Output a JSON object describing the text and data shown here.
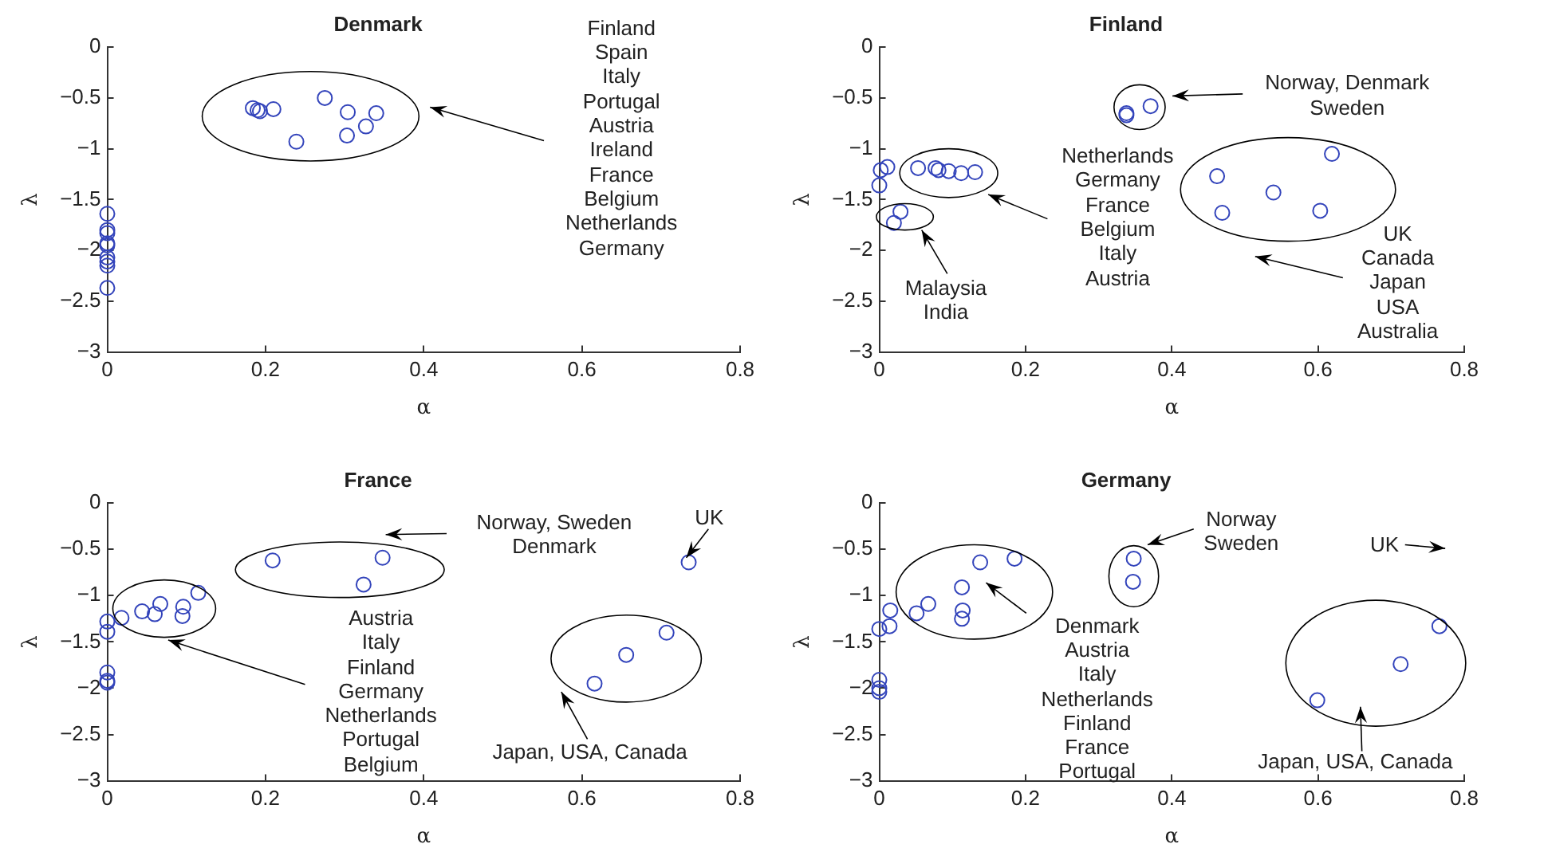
{
  "chart_data": [
    {
      "type": "scatter",
      "title": "Denmark",
      "xlabel": "α",
      "ylabel": "λ",
      "color": "#3344bb",
      "marker": "circle",
      "grid": false,
      "legend": false,
      "xlim": [
        0,
        0.8
      ],
      "xticks": [
        0,
        0.2,
        0.4,
        0.6,
        0.8
      ],
      "ylim": [
        -3,
        0
      ],
      "yticks": [
        -3,
        -2.5,
        -2,
        -1.5,
        -1,
        -0.5,
        0
      ],
      "x": [
        0.184,
        0.19,
        0.193,
        0.21,
        0.275,
        0.304,
        0.34,
        0.327,
        0.303,
        0.239,
        0,
        0,
        0,
        0,
        0,
        0,
        0,
        0,
        0
      ],
      "values": [
        -0.6,
        -0.62,
        -0.63,
        -0.61,
        -0.5,
        -0.64,
        -0.65,
        -0.78,
        -0.87,
        -0.93,
        -1.64,
        -1.8,
        -1.83,
        -1.93,
        -1.95,
        -2.07,
        -2.11,
        -2.15,
        -2.37
      ],
      "annotations": [
        "Finland\nSpain\nItaly\nPortugal\nAustria\nIreland\nFrance\nBelgium\nNetherlands\nGermany"
      ]
    },
    {
      "type": "scatter",
      "title": "Finland",
      "xlabel": "α",
      "ylabel": "λ",
      "color": "#3344bb",
      "marker": "circle",
      "grid": false,
      "legend": false,
      "xlim": [
        0,
        0.8
      ],
      "xticks": [
        0,
        0.2,
        0.4,
        0.6,
        0.8
      ],
      "ylim": [
        -3,
        0
      ],
      "yticks": [
        -3,
        -2.5,
        -2,
        -1.5,
        -1,
        -0.5,
        0
      ],
      "x": [
        0.002,
        0.011,
        0,
        0.029,
        0.02,
        0.053,
        0.077,
        0.081,
        0.095,
        0.112,
        0.131,
        0.338,
        0.338,
        0.371,
        0.462,
        0.469,
        0.539,
        0.603,
        0.619
      ],
      "values": [
        -1.21,
        -1.18,
        -1.36,
        -1.62,
        -1.73,
        -1.19,
        -1.19,
        -1.21,
        -1.22,
        -1.24,
        -1.23,
        -0.65,
        -0.67,
        -0.58,
        -1.27,
        -1.63,
        -1.43,
        -1.61,
        -1.05
      ],
      "annotations": [
        "Norway, Denmark\nSweden",
        "Netherlands\nGermany\nFrance\nBelgium\nItaly\nAustria",
        "Malaysia\nIndia",
        "UK\nCanada\nJapan\nUSA\nAustralia"
      ]
    },
    {
      "type": "scatter",
      "title": "France",
      "xlabel": "α",
      "ylabel": "λ",
      "color": "#3344bb",
      "marker": "circle",
      "grid": false,
      "legend": false,
      "xlim": [
        0,
        0.8
      ],
      "xticks": [
        0,
        0.2,
        0.4,
        0.6,
        0.8
      ],
      "ylim": [
        -3,
        0
      ],
      "yticks": [
        -3,
        -2.5,
        -2,
        -1.5,
        -1,
        -0.5,
        0
      ],
      "x": [
        0,
        0,
        0,
        0,
        0,
        0.018,
        0.044,
        0.06,
        0.067,
        0.096,
        0.095,
        0.115,
        0.209,
        0.348,
        0.324,
        0.735,
        0.616,
        0.656,
        0.707
      ],
      "values": [
        -1.28,
        -1.39,
        -1.83,
        -1.92,
        -1.94,
        -1.24,
        -1.17,
        -1.2,
        -1.09,
        -1.12,
        -1.22,
        -0.97,
        -0.62,
        -0.59,
        -0.88,
        -0.64,
        -1.95,
        -1.64,
        -1.4
      ],
      "annotations": [
        "Norway, Sweden\nDenmark",
        "UK",
        "Austria\nItaly\nFinland\nGermany\nNetherlands\nPortugal\nBelgium",
        "Japan, USA, Canada"
      ]
    },
    {
      "type": "scatter",
      "title": "Germany",
      "xlabel": "α",
      "ylabel": "λ",
      "color": "#3344bb",
      "marker": "circle",
      "grid": false,
      "legend": false,
      "xlim": [
        0,
        0.8
      ],
      "xticks": [
        0,
        0.2,
        0.4,
        0.6,
        0.8
      ],
      "ylim": [
        -3,
        0
      ],
      "yticks": [
        -3,
        -2.5,
        -2,
        -1.5,
        -1,
        -0.5,
        0
      ],
      "x": [
        0,
        0.014,
        0.015,
        0,
        0,
        0,
        0.051,
        0.067,
        0.113,
        0.114,
        0.113,
        0.138,
        0.185,
        0.348,
        0.347,
        0.599,
        0.713,
        0.766
      ],
      "values": [
        -1.36,
        -1.33,
        -1.16,
        -1.91,
        -2,
        -2.04,
        -1.19,
        -1.09,
        -0.91,
        -1.16,
        -1.25,
        -0.64,
        -0.6,
        -0.6,
        -0.85,
        -2.13,
        -1.74,
        -1.33
      ],
      "annotations": [
        "Denmark\nAustria\nItaly\nNetherlands\nFinland\nFrance\nPortugal",
        "Norway\nSweden",
        "UK",
        "Japan, USA, Canada"
      ]
    }
  ]
}
